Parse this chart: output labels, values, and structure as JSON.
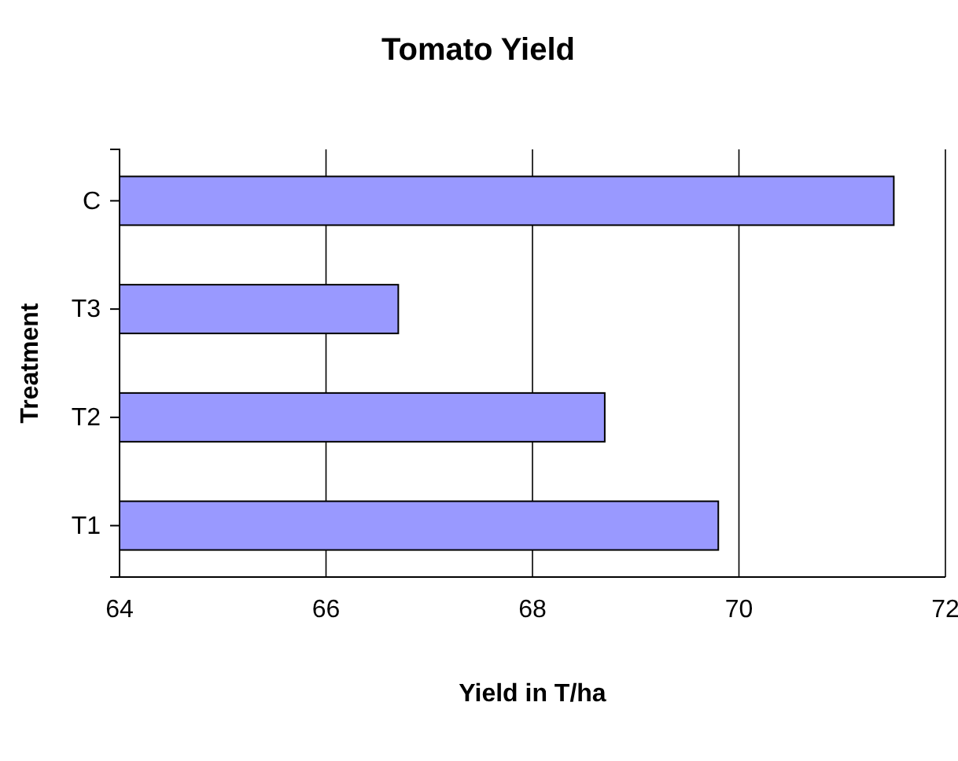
{
  "chart_data": {
    "type": "bar",
    "orientation": "horizontal",
    "title": "Tomato Yield",
    "xlabel": "Yield in T/ha",
    "ylabel": "Treatment",
    "categories": [
      "C",
      "T3",
      "T2",
      "T1"
    ],
    "series": [
      {
        "color": "#9999ff",
        "values": [
          71.5,
          66.7,
          68.7,
          69.8
        ]
      }
    ],
    "xlim": [
      64,
      72
    ],
    "xticks": [
      64,
      66,
      68,
      70,
      72
    ],
    "grid": "x"
  }
}
